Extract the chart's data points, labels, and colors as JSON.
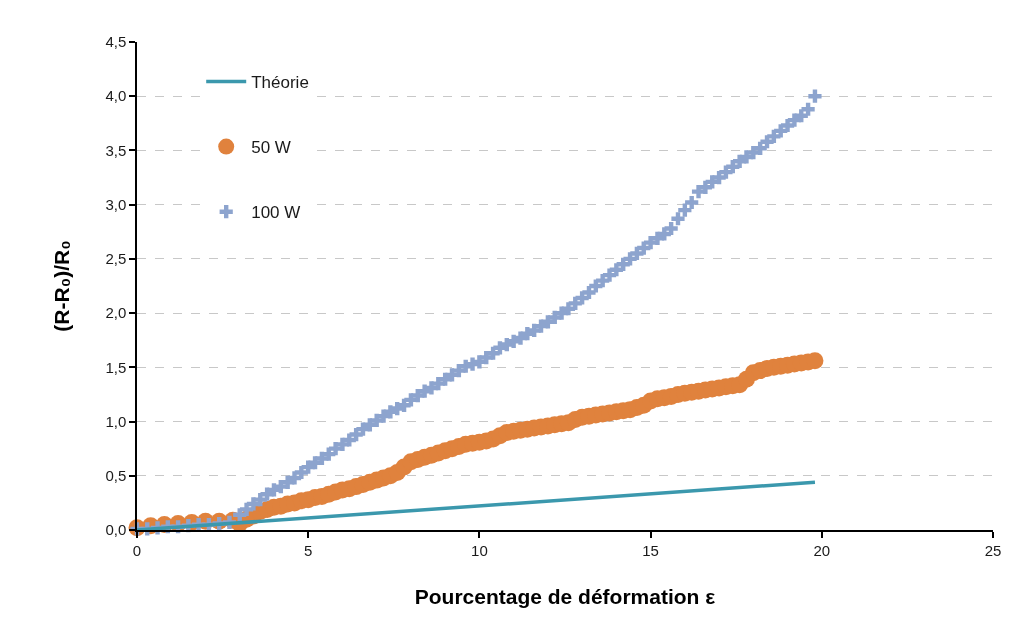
{
  "chart_data": {
    "type": "scatter",
    "xlabel": "Pourcentage de déformation ε",
    "ylabel": "(R-R₀)/R₀",
    "xlim": [
      0,
      25
    ],
    "xticks": [
      0,
      5,
      10,
      15,
      20,
      25
    ],
    "ylim": [
      0,
      4.5
    ],
    "yticks": [
      {
        "value": 0,
        "label": "0,0"
      },
      {
        "value": 0.5,
        "label": "0,5"
      },
      {
        "value": 1,
        "label": "1,0"
      },
      {
        "value": 1.5,
        "label": "1,5"
      },
      {
        "value": 2,
        "label": "2,0"
      },
      {
        "value": 2.5,
        "label": "2,5"
      },
      {
        "value": 3,
        "label": "3,0"
      },
      {
        "value": 3.5,
        "label": "3,5"
      },
      {
        "value": 4,
        "label": "4,0"
      },
      {
        "value": 4.5,
        "label": "4,5"
      }
    ],
    "grid": "y",
    "legend": "top left",
    "series": [
      {
        "name": "Théorie",
        "type": "line",
        "line_style": "solid",
        "color": "#3b98ad",
        "x": [
          0,
          19.8
        ],
        "values": [
          0,
          0.44
        ]
      },
      {
        "name": "50 W",
        "type": "scatter",
        "marker": "circle",
        "color": "#e0823d",
        "x": [
          0,
          0.4,
          0.8,
          1.2,
          1.6,
          2,
          2.4,
          2.8,
          3,
          3.2,
          3.4,
          3.6,
          3.8,
          4,
          4.2,
          4.4,
          4.6,
          4.8,
          5,
          5.2,
          5.4,
          5.6,
          5.8,
          6,
          6.2,
          6.4,
          6.6,
          6.8,
          7,
          7.2,
          7.4,
          7.6,
          7.8,
          8,
          8.2,
          8.4,
          8.6,
          8.8,
          9,
          9.2,
          9.4,
          9.6,
          9.8,
          10,
          10.2,
          10.4,
          10.6,
          10.8,
          11,
          11.2,
          11.4,
          11.6,
          11.8,
          12,
          12.2,
          12.4,
          12.6,
          12.8,
          13,
          13.2,
          13.4,
          13.6,
          13.8,
          14,
          14.2,
          14.4,
          14.6,
          14.8,
          15,
          15.2,
          15.4,
          15.6,
          15.8,
          16,
          16.2,
          16.4,
          16.6,
          16.8,
          17,
          17.2,
          17.4,
          17.6,
          17.8,
          18,
          18.2,
          18.4,
          18.6,
          18.8,
          19,
          19.2,
          19.4,
          19.6,
          19.8
        ],
        "values": [
          0.02,
          0.04,
          0.05,
          0.06,
          0.07,
          0.08,
          0.08,
          0.09,
          0.06,
          0.1,
          0.13,
          0.17,
          0.19,
          0.21,
          0.22,
          0.24,
          0.25,
          0.27,
          0.28,
          0.3,
          0.31,
          0.33,
          0.35,
          0.37,
          0.38,
          0.4,
          0.42,
          0.44,
          0.46,
          0.48,
          0.5,
          0.53,
          0.58,
          0.63,
          0.65,
          0.67,
          0.69,
          0.71,
          0.73,
          0.75,
          0.77,
          0.79,
          0.8,
          0.81,
          0.82,
          0.84,
          0.87,
          0.9,
          0.91,
          0.92,
          0.93,
          0.94,
          0.95,
          0.96,
          0.97,
          0.98,
          0.99,
          1.02,
          1.04,
          1.05,
          1.06,
          1.07,
          1.08,
          1.09,
          1.1,
          1.11,
          1.13,
          1.15,
          1.19,
          1.21,
          1.22,
          1.23,
          1.25,
          1.26,
          1.27,
          1.28,
          1.29,
          1.3,
          1.31,
          1.32,
          1.33,
          1.34,
          1.39,
          1.45,
          1.47,
          1.49,
          1.5,
          1.51,
          1.52,
          1.53,
          1.54,
          1.55,
          1.56
        ]
      },
      {
        "name": "100 W",
        "type": "scatter",
        "marker": "cross",
        "color": "#8da4ce",
        "x": [
          0,
          0.3,
          0.6,
          0.9,
          1.2,
          1.5,
          1.8,
          2.1,
          2.4,
          2.7,
          3,
          3.2,
          3.4,
          3.6,
          3.8,
          4,
          4.2,
          4.4,
          4.6,
          4.8,
          5,
          5.2,
          5.4,
          5.6,
          5.8,
          6,
          6.2,
          6.4,
          6.6,
          6.8,
          7,
          7.2,
          7.4,
          7.6,
          7.8,
          8,
          8.2,
          8.4,
          8.6,
          8.8,
          9,
          9.2,
          9.4,
          9.6,
          9.8,
          10,
          10.2,
          10.4,
          10.6,
          10.8,
          11,
          11.2,
          11.4,
          11.6,
          11.8,
          12,
          12.2,
          12.4,
          12.6,
          12.8,
          13,
          13.2,
          13.4,
          13.6,
          13.8,
          14,
          14.2,
          14.4,
          14.6,
          14.8,
          15,
          15.2,
          15.4,
          15.6,
          15.8,
          16,
          16.2,
          16.4,
          16.6,
          16.8,
          17,
          17.2,
          17.4,
          17.6,
          17.8,
          18,
          18.2,
          18.4,
          18.6,
          18.8,
          19,
          19.2,
          19.4,
          19.6,
          19.8
        ],
        "values": [
          0.01,
          0.01,
          0.02,
          0.03,
          0.03,
          0.04,
          0.05,
          0.05,
          0.06,
          0.07,
          0.14,
          0.19,
          0.24,
          0.28,
          0.33,
          0.37,
          0.4,
          0.44,
          0.48,
          0.53,
          0.58,
          0.62,
          0.66,
          0.7,
          0.75,
          0.79,
          0.83,
          0.88,
          0.93,
          0.97,
          1.01,
          1.05,
          1.09,
          1.12,
          1.15,
          1.2,
          1.24,
          1.28,
          1.31,
          1.35,
          1.39,
          1.43,
          1.47,
          1.51,
          1.53,
          1.55,
          1.59,
          1.63,
          1.68,
          1.71,
          1.74,
          1.77,
          1.81,
          1.84,
          1.88,
          1.92,
          1.96,
          2,
          2.04,
          2.09,
          2.14,
          2.19,
          2.25,
          2.3,
          2.35,
          2.4,
          2.45,
          2.5,
          2.55,
          2.6,
          2.65,
          2.69,
          2.73,
          2.78,
          2.87,
          2.95,
          3.02,
          3.12,
          3.16,
          3.21,
          3.25,
          3.3,
          3.35,
          3.4,
          3.44,
          3.48,
          3.52,
          3.58,
          3.63,
          3.68,
          3.73,
          3.78,
          3.82,
          3.88,
          4
        ]
      }
    ]
  }
}
